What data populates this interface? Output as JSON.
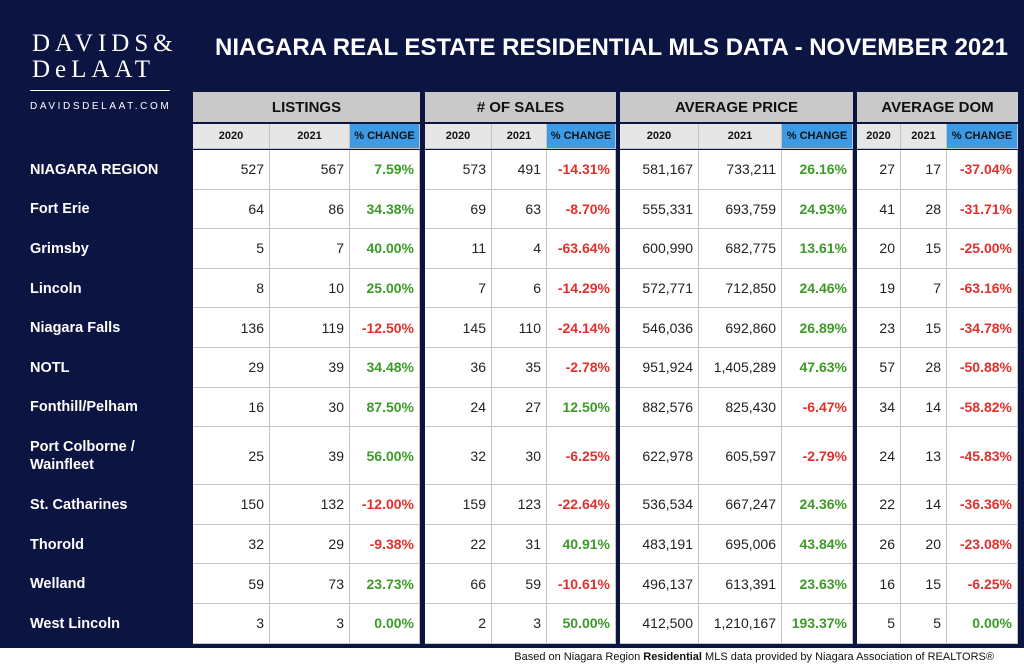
{
  "header": {
    "logo": [
      "DAVIDS&",
      "DeLAAT"
    ],
    "website": "DAVIDSDELAAT.COM",
    "title": "NIAGARA REAL ESTATE RESIDENTIAL MLS DATA - NOVEMBER 2021"
  },
  "table": {
    "groups": [
      "LISTINGS",
      "# OF SALES",
      "AVERAGE PRICE",
      "AVERAGE DOM"
    ],
    "columns": [
      "2020",
      "2021",
      "% CHANGE",
      "2020",
      "2021",
      "% CHANGE",
      "2020",
      "2021",
      "% CHANGE",
      "2020",
      "2021",
      "% CHANGE"
    ],
    "rows": [
      {
        "name": "NIAGARA REGION",
        "cells": [
          "527",
          "567",
          "7.59%",
          "573",
          "491",
          "-14.31%",
          "581,167",
          "733,211",
          "26.16%",
          "27",
          "17",
          "-37.04%"
        ]
      },
      {
        "name": "Fort Erie",
        "cells": [
          "64",
          "86",
          "34.38%",
          "69",
          "63",
          "-8.70%",
          "555,331",
          "693,759",
          "24.93%",
          "41",
          "28",
          "-31.71%"
        ]
      },
      {
        "name": "Grimsby",
        "cells": [
          "5",
          "7",
          "40.00%",
          "11",
          "4",
          "-63.64%",
          "600,990",
          "682,775",
          "13.61%",
          "20",
          "15",
          "-25.00%"
        ]
      },
      {
        "name": "Lincoln",
        "cells": [
          "8",
          "10",
          "25.00%",
          "7",
          "6",
          "-14.29%",
          "572,771",
          "712,850",
          "24.46%",
          "19",
          "7",
          "-63.16%"
        ]
      },
      {
        "name": "Niagara Falls",
        "cells": [
          "136",
          "119",
          "-12.50%",
          "145",
          "110",
          "-24.14%",
          "546,036",
          "692,860",
          "26.89%",
          "23",
          "15",
          "-34.78%"
        ]
      },
      {
        "name": "NOTL",
        "cells": [
          "29",
          "39",
          "34.48%",
          "36",
          "35",
          "-2.78%",
          "951,924",
          "1,405,289",
          "47.63%",
          "57",
          "28",
          "-50.88%"
        ]
      },
      {
        "name": "Fonthill/Pelham",
        "cells": [
          "16",
          "30",
          "87.50%",
          "24",
          "27",
          "12.50%",
          "882,576",
          "825,430",
          "-6.47%",
          "34",
          "14",
          "-58.82%"
        ]
      },
      {
        "name": "Port Colborne / Wainfleet",
        "cells": [
          "25",
          "39",
          "56.00%",
          "32",
          "30",
          "-6.25%",
          "622,978",
          "605,597",
          "-2.79%",
          "24",
          "13",
          "-45.83%"
        ]
      },
      {
        "name": "St. Catharines",
        "cells": [
          "150",
          "132",
          "-12.00%",
          "159",
          "123",
          "-22.64%",
          "536,534",
          "667,247",
          "24.36%",
          "22",
          "14",
          "-36.36%"
        ]
      },
      {
        "name": "Thorold",
        "cells": [
          "32",
          "29",
          "-9.38%",
          "22",
          "31",
          "40.91%",
          "483,191",
          "695,006",
          "43.84%",
          "26",
          "20",
          "-23.08%"
        ]
      },
      {
        "name": "Welland",
        "cells": [
          "59",
          "73",
          "23.73%",
          "66",
          "59",
          "-10.61%",
          "496,137",
          "613,391",
          "23.63%",
          "16",
          "15",
          "-6.25%"
        ]
      },
      {
        "name": "West Lincoln",
        "cells": [
          "3",
          "3",
          "0.00%",
          "2",
          "3",
          "50.00%",
          "412,500",
          "1,210,167",
          "193.37%",
          "5",
          "5",
          "0.00%"
        ]
      }
    ]
  },
  "footer": {
    "before": "Based on Niagara Region ",
    "bold": "Residential",
    "after": " MLS data provided by Niagara Association of REALTORS®"
  }
}
